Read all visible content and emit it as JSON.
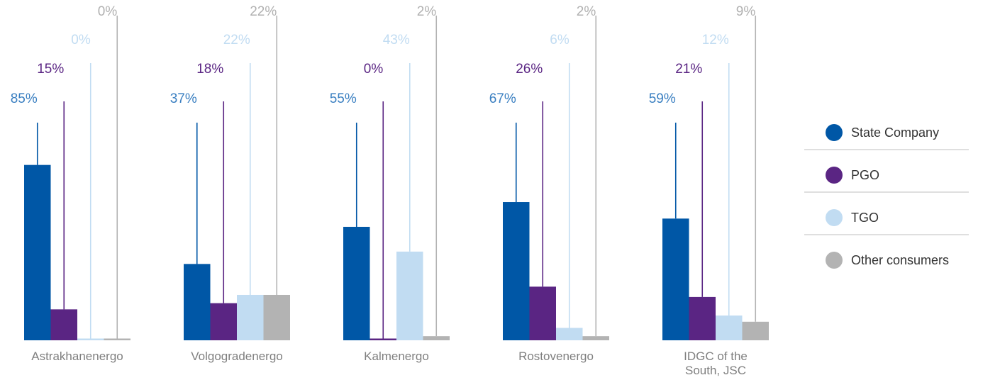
{
  "chart_data": {
    "type": "bar",
    "categories": [
      "Astrakhanenergo",
      "Volgogradenergo",
      "Kalmenergo",
      "Rostovenergo",
      "IDGC of the South, JSC"
    ],
    "category_display_lines": [
      [
        "Astrakhanenergo"
      ],
      [
        "Volgogradenergo"
      ],
      [
        "Kalmenergo"
      ],
      [
        "Rostovenergo"
      ],
      [
        "IDGC of the",
        "South, JSC"
      ]
    ],
    "unit": "%",
    "ylim": [
      0,
      100
    ],
    "grid": false,
    "legend_position": "right",
    "series": [
      {
        "name": "State Company",
        "color": "#0057a6",
        "values": [
          85,
          37,
          55,
          67,
          59
        ]
      },
      {
        "name": "PGO",
        "color": "#5a2583",
        "values": [
          15,
          18,
          0,
          26,
          21
        ]
      },
      {
        "name": "TGO",
        "color": "#c1dcf2",
        "values": [
          0,
          22,
          43,
          6,
          12
        ]
      },
      {
        "name": "Other consumers",
        "color": "#b3b3b3",
        "values": [
          0,
          22,
          2,
          2,
          9
        ]
      }
    ],
    "label_colors": [
      "#3a7fc1",
      "#5a2583",
      "#c1dcf2",
      "#b0b0b0"
    ]
  }
}
